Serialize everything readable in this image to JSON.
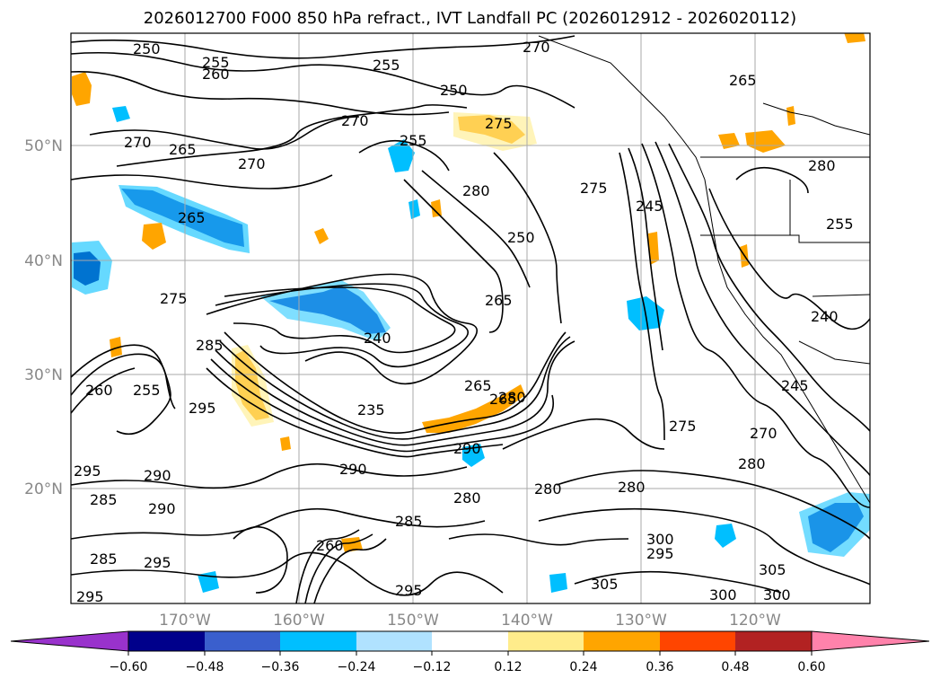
{
  "title": "2026012700 F000 850 hPa refract., IVT Landfall PC (2026012912 - 2026020112)",
  "map": {
    "lat_labels": [
      "50°N",
      "40°N",
      "30°N",
      "20°N"
    ],
    "lon_labels": [
      "170°W",
      "160°W",
      "150°W",
      "140°W",
      "130°W",
      "120°W"
    ],
    "contour_labels": [
      "250",
      "255",
      "260",
      "265",
      "270",
      "275",
      "280",
      "285",
      "290",
      "295",
      "300",
      "305",
      "240",
      "245",
      "235",
      "285",
      "290",
      "300",
      "295"
    ]
  },
  "colorbar": {
    "ticks": [
      "−0.60",
      "−0.48",
      "−0.36",
      "−0.24",
      "−0.12",
      "0.12",
      "0.24",
      "0.36",
      "0.48",
      "0.60"
    ],
    "colors": [
      "#9932cc",
      "#00008b",
      "#3a5fcd",
      "#00bfff",
      "#b0e2ff",
      "#ffffff",
      "#ffec8b",
      "#ffa500",
      "#ff4500",
      "#b22222",
      "#ff82ab"
    ],
    "extend": "both"
  }
}
